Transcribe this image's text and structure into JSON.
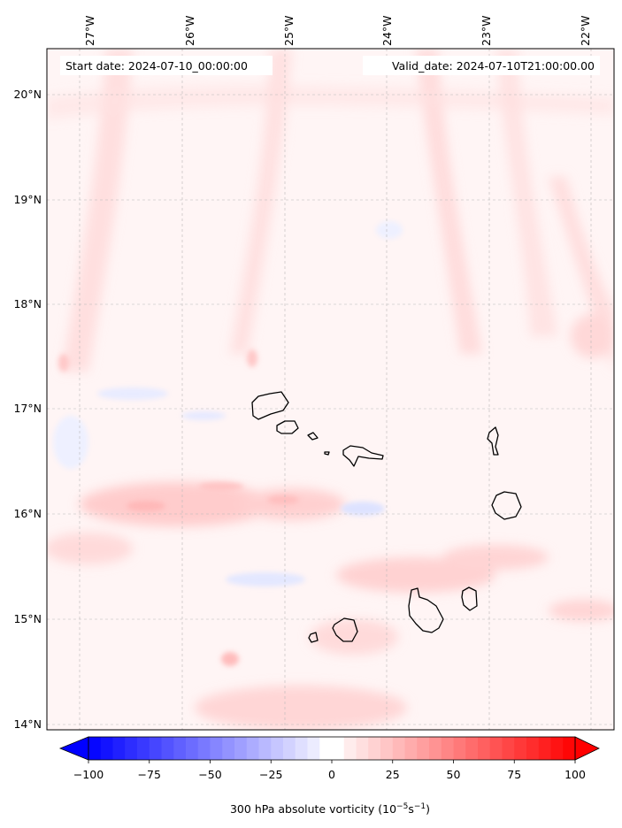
{
  "map": {
    "start_label": "Start date: 2024-07-10_00:00:00",
    "valid_label": "Valid_date: 2024-07-10T21:00:00.00",
    "lon_labels": [
      "27°W",
      "26°W",
      "25°W",
      "24°W",
      "23°W",
      "22°W"
    ],
    "lat_labels": [
      "20°N",
      "19°N",
      "18°N",
      "17°N",
      "16°N",
      "15°N",
      "14°N"
    ],
    "extent": {
      "lon_min": -27.33,
      "lon_max": -21.9,
      "lat_min": 13.95,
      "lat_max": 20.42
    }
  },
  "colorbar": {
    "ticks": [
      "−100",
      "−75",
      "−50",
      "−25",
      "0",
      "25",
      "50",
      "75",
      "100"
    ],
    "label_main": "300 hPa absolute vorticity (10",
    "label_exp1": "−5",
    "label_mid": "s",
    "label_exp2": "−1",
    "label_end": ")",
    "range": [
      -100,
      100
    ],
    "levels": 41,
    "colormap": "bwr",
    "color_min": "#0000ff",
    "color_mid": "#ffffff",
    "color_max": "#ff0000"
  }
}
